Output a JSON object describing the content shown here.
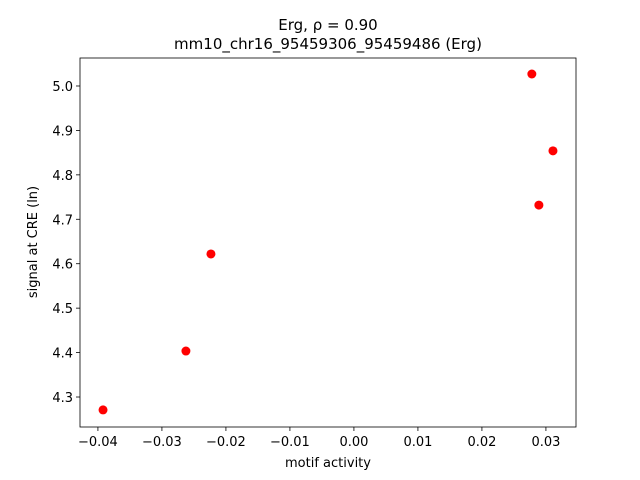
{
  "chart_data": {
    "type": "scatter",
    "title": "Erg, ρ = 0.90",
    "subtitle": "mm10_chr16_95459306_95459486 (Erg)",
    "x_label": "motif activity",
    "y_label": "signal at CRE (ln)",
    "color": "#ff0000",
    "x": [
      -0.0392,
      -0.02625,
      -0.02234,
      0.0278,
      0.0289,
      0.0311
    ],
    "values": [
      4.271,
      4.4035,
      4.622,
      5.027,
      4.732,
      4.854
    ],
    "xlim": [
      -0.0428,
      0.0347
    ],
    "ylim": [
      4.2325,
      5.063
    ],
    "xticks": [
      {
        "value": -0.04,
        "label": "−0.04"
      },
      {
        "value": -0.03,
        "label": "−0.03"
      },
      {
        "value": -0.02,
        "label": "−0.02"
      },
      {
        "value": -0.01,
        "label": "−0.01"
      },
      {
        "value": 0,
        "label": "0.00"
      },
      0.01,
      0.02,
      0.03
    ],
    "yticks": [
      4.3,
      4.4,
      4.5,
      4.6,
      4.7,
      4.8,
      4.9,
      {
        "value": 5,
        "label": "5.0"
      }
    ],
    "grid": false
  }
}
